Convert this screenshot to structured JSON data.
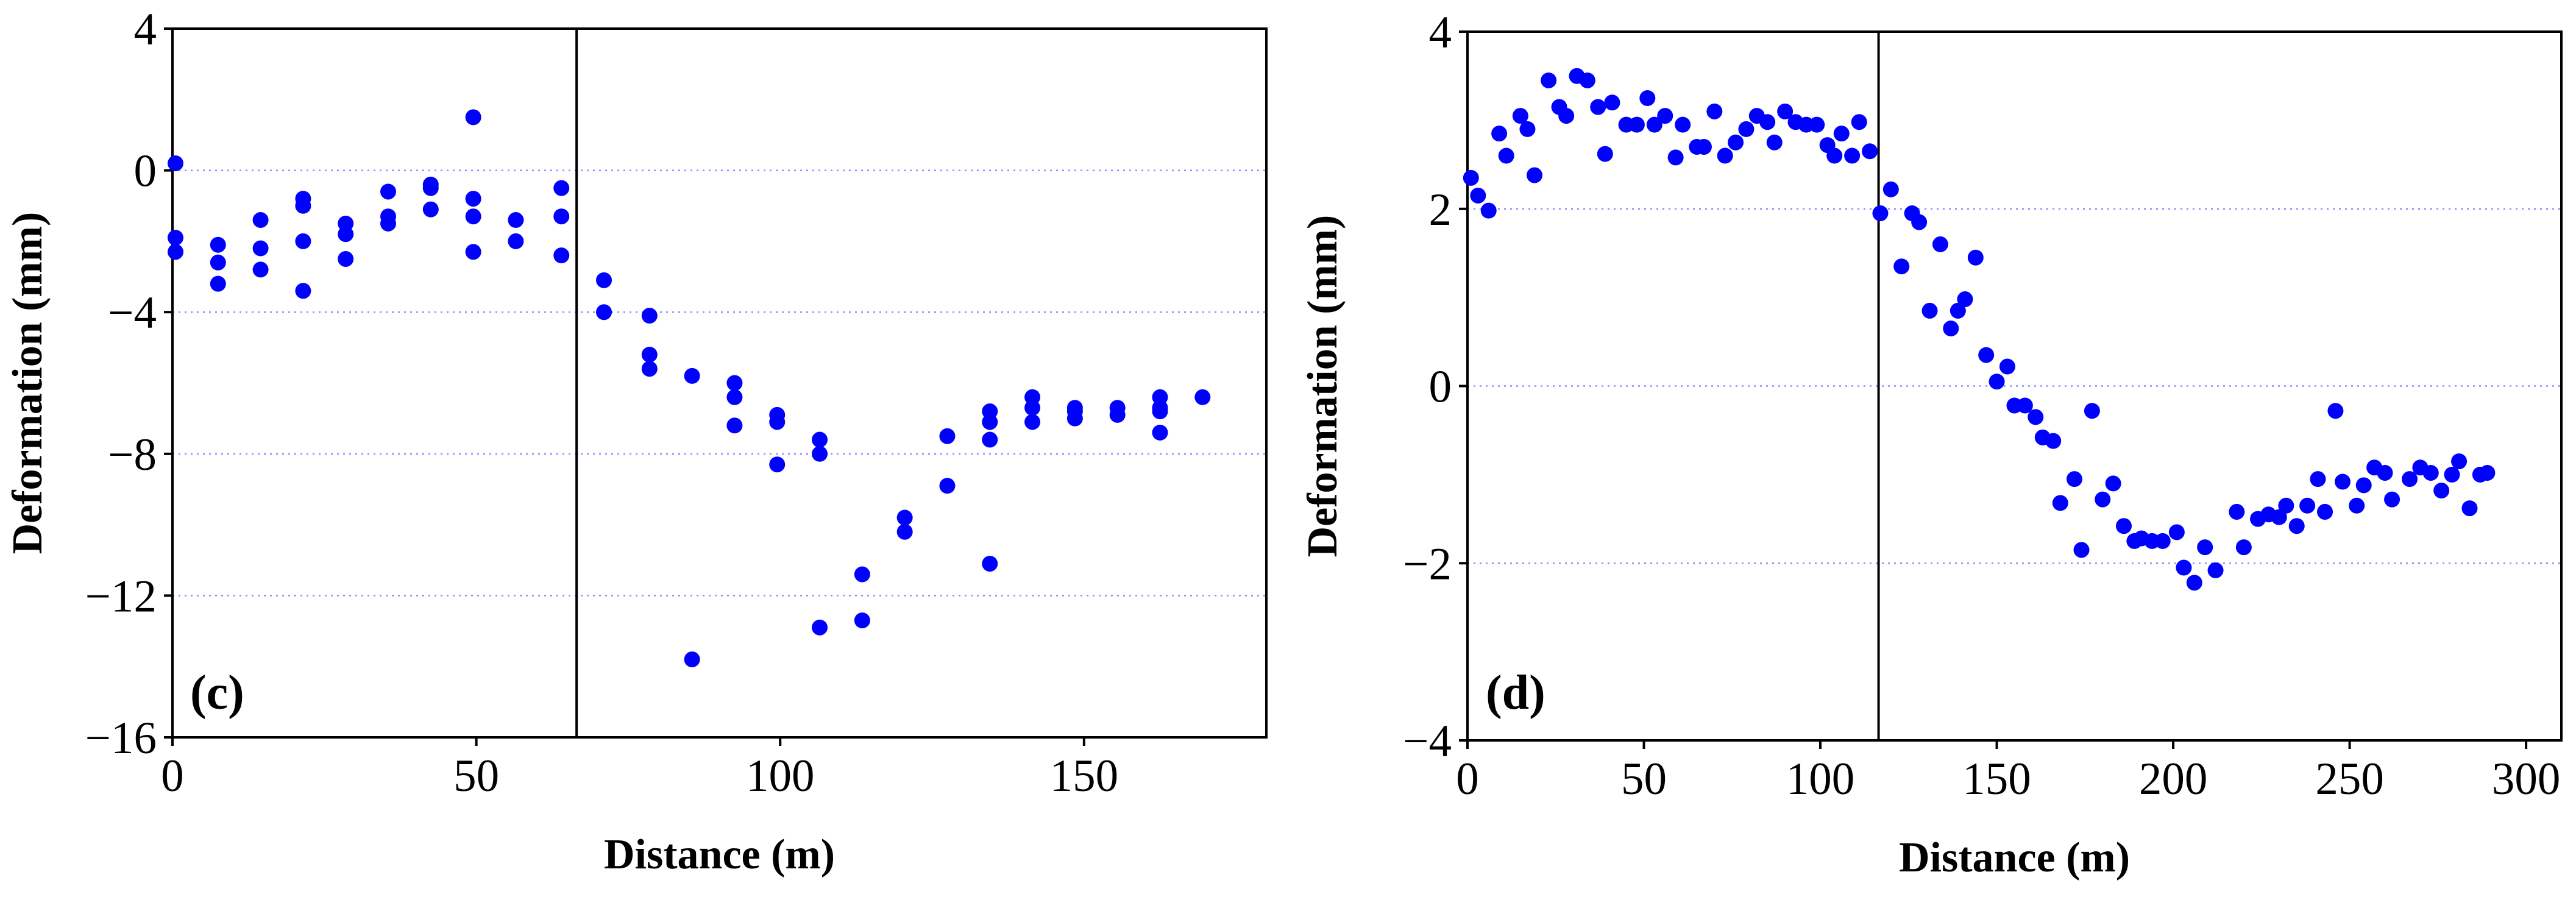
{
  "colors": {
    "point": "#0000ff",
    "grid": "#8c8cff",
    "axis": "#000000"
  },
  "chart_data": [
    {
      "type": "scatter",
      "panel_label": "(c)",
      "xlabel": "Distance (m)",
      "ylabel": "Deformation (mm)",
      "xlim": [
        0,
        180
      ],
      "ylim": [
        -16,
        4
      ],
      "xticks": [
        0,
        50,
        100,
        150
      ],
      "yticks": [
        4,
        0,
        -4,
        -8,
        -12,
        -16
      ],
      "xtick_labels": [
        "0",
        "50",
        "100",
        "150"
      ],
      "ytick_labels": [
        "4",
        "0",
        "−4",
        "−8",
        "−12",
        "−16"
      ],
      "grid_y": [
        0,
        -4,
        -8,
        -12
      ],
      "vline_x": 66.5,
      "series": [
        {
          "name": "deformation",
          "points": [
            [
              0.5,
              0.2
            ],
            [
              0.5,
              -1.9
            ],
            [
              0.5,
              -2.3
            ],
            [
              7.5,
              -2.1
            ],
            [
              7.5,
              -2.6
            ],
            [
              7.5,
              -3.2
            ],
            [
              14.5,
              -1.4
            ],
            [
              14.5,
              -2.2
            ],
            [
              14.5,
              -2.8
            ],
            [
              21.5,
              -0.8
            ],
            [
              21.5,
              -1.0
            ],
            [
              21.5,
              -2.0
            ],
            [
              21.5,
              -3.4
            ],
            [
              28.5,
              -1.5
            ],
            [
              28.5,
              -1.8
            ],
            [
              28.5,
              -2.5
            ],
            [
              35.5,
              -0.6
            ],
            [
              35.5,
              -1.3
            ],
            [
              35.5,
              -1.5
            ],
            [
              42.5,
              -0.4
            ],
            [
              42.5,
              -0.5
            ],
            [
              42.5,
              -1.1
            ],
            [
              49.5,
              1.5
            ],
            [
              49.5,
              -0.8
            ],
            [
              49.5,
              -1.3
            ],
            [
              49.5,
              -2.3
            ],
            [
              56.5,
              -1.4
            ],
            [
              56.5,
              -2.0
            ],
            [
              64,
              -0.5
            ],
            [
              64,
              -1.3
            ],
            [
              64,
              -2.4
            ],
            [
              71,
              -3.1
            ],
            [
              71,
              -4.0
            ],
            [
              78.5,
              -4.1
            ],
            [
              78.5,
              -5.2
            ],
            [
              78.5,
              -5.6
            ],
            [
              85.5,
              -5.8
            ],
            [
              85.5,
              -13.8
            ],
            [
              92.5,
              -6.0
            ],
            [
              92.5,
              -6.4
            ],
            [
              92.5,
              -7.2
            ],
            [
              99.5,
              -6.9
            ],
            [
              99.5,
              -7.1
            ],
            [
              99.5,
              -8.3
            ],
            [
              106.5,
              -7.6
            ],
            [
              106.5,
              -8.0
            ],
            [
              106.5,
              -12.9
            ],
            [
              113.5,
              -11.4
            ],
            [
              113.5,
              -12.7
            ],
            [
              120.5,
              -9.8
            ],
            [
              120.5,
              -10.2
            ],
            [
              127.5,
              -7.5
            ],
            [
              127.5,
              -8.9
            ],
            [
              134.5,
              -6.8
            ],
            [
              134.5,
              -7.1
            ],
            [
              134.5,
              -7.6
            ],
            [
              134.5,
              -11.1
            ],
            [
              141.5,
              -6.4
            ],
            [
              141.5,
              -6.7
            ],
            [
              141.5,
              -7.1
            ],
            [
              148.5,
              -6.7
            ],
            [
              148.5,
              -6.8
            ],
            [
              148.5,
              -7.0
            ],
            [
              155.5,
              -6.7
            ],
            [
              155.5,
              -6.9
            ],
            [
              162.5,
              -6.4
            ],
            [
              162.5,
              -6.7
            ],
            [
              162.5,
              -6.8
            ],
            [
              162.5,
              -7.4
            ],
            [
              169.5,
              -6.4
            ]
          ]
        }
      ]
    },
    {
      "type": "scatter",
      "panel_label": "(d)",
      "xlabel": "Distance (m)",
      "ylabel": "Deformation (mm)",
      "xlim": [
        0,
        310
      ],
      "ylim": [
        -4,
        4
      ],
      "xticks": [
        0,
        50,
        100,
        150,
        200,
        250,
        300
      ],
      "yticks": [
        4,
        2,
        0,
        -2,
        -4
      ],
      "xtick_labels": [
        "0",
        "50",
        "100",
        "150",
        "200",
        "250",
        "300"
      ],
      "ytick_labels": [
        "4",
        "2",
        "0",
        "−2",
        "−4"
      ],
      "grid_y": [
        2,
        0,
        -2
      ],
      "vline_x": 116.5,
      "series": [
        {
          "name": "deformation",
          "points": [
            [
              1,
              2.35
            ],
            [
              3,
              2.15
            ],
            [
              6,
              1.98
            ],
            [
              9,
              2.85
            ],
            [
              11,
              2.6
            ],
            [
              15,
              3.05
            ],
            [
              17,
              2.9
            ],
            [
              19,
              2.38
            ],
            [
              23,
              3.45
            ],
            [
              26,
              3.15
            ],
            [
              28,
              3.05
            ],
            [
              31,
              3.5
            ],
            [
              34,
              3.45
            ],
            [
              37,
              3.15
            ],
            [
              39,
              2.62
            ],
            [
              41,
              3.2
            ],
            [
              45,
              2.95
            ],
            [
              48,
              2.95
            ],
            [
              51,
              3.25
            ],
            [
              53,
              2.95
            ],
            [
              56,
              3.05
            ],
            [
              59,
              2.58
            ],
            [
              61,
              2.95
            ],
            [
              65,
              2.7
            ],
            [
              67,
              2.7
            ],
            [
              70,
              3.1
            ],
            [
              73,
              2.6
            ],
            [
              76,
              2.75
            ],
            [
              79,
              2.9
            ],
            [
              82,
              3.05
            ],
            [
              85,
              2.98
            ],
            [
              87,
              2.75
            ],
            [
              90,
              3.1
            ],
            [
              93,
              2.98
            ],
            [
              96,
              2.95
            ],
            [
              99,
              2.95
            ],
            [
              102,
              2.72
            ],
            [
              104,
              2.6
            ],
            [
              106,
              2.85
            ],
            [
              109,
              2.6
            ],
            [
              111,
              2.98
            ],
            [
              114,
              2.65
            ],
            [
              117,
              1.95
            ],
            [
              120,
              2.22
            ],
            [
              123,
              1.35
            ],
            [
              126,
              1.95
            ],
            [
              128,
              1.85
            ],
            [
              131,
              0.85
            ],
            [
              134,
              1.6
            ],
            [
              137,
              0.65
            ],
            [
              139,
              0.85
            ],
            [
              141,
              0.98
            ],
            [
              144,
              1.45
            ],
            [
              147,
              0.35
            ],
            [
              150,
              0.05
            ],
            [
              153,
              0.22
            ],
            [
              155,
              -0.22
            ],
            [
              158,
              -0.22
            ],
            [
              161,
              -0.35
            ],
            [
              163,
              -0.58
            ],
            [
              166,
              -0.62
            ],
            [
              168,
              -1.32
            ],
            [
              172,
              -1.05
            ],
            [
              174,
              -1.85
            ],
            [
              177,
              -0.28
            ],
            [
              180,
              -1.28
            ],
            [
              183,
              -1.1
            ],
            [
              186,
              -1.58
            ],
            [
              189,
              -1.75
            ],
            [
              191,
              -1.72
            ],
            [
              194,
              -1.75
            ],
            [
              197,
              -1.75
            ],
            [
              201,
              -1.65
            ],
            [
              203,
              -2.05
            ],
            [
              206,
              -2.22
            ],
            [
              209,
              -1.82
            ],
            [
              212,
              -2.08
            ],
            [
              218,
              -1.42
            ],
            [
              220,
              -1.82
            ],
            [
              224,
              -1.5
            ],
            [
              227,
              -1.45
            ],
            [
              230,
              -1.48
            ],
            [
              232,
              -1.35
            ],
            [
              235,
              -1.58
            ],
            [
              238,
              -1.35
            ],
            [
              241,
              -1.05
            ],
            [
              243,
              -1.42
            ],
            [
              246,
              -0.28
            ],
            [
              248,
              -1.08
            ],
            [
              252,
              -1.35
            ],
            [
              254,
              -1.12
            ],
            [
              257,
              -0.92
            ],
            [
              260,
              -0.98
            ],
            [
              262,
              -1.28
            ],
            [
              267,
              -1.05
            ],
            [
              270,
              -0.92
            ],
            [
              273,
              -0.98
            ],
            [
              276,
              -1.18
            ],
            [
              279,
              -1.0
            ],
            [
              281,
              -0.85
            ],
            [
              284,
              -1.38
            ],
            [
              287,
              -1.0
            ],
            [
              289,
              -0.98
            ]
          ]
        }
      ]
    }
  ]
}
